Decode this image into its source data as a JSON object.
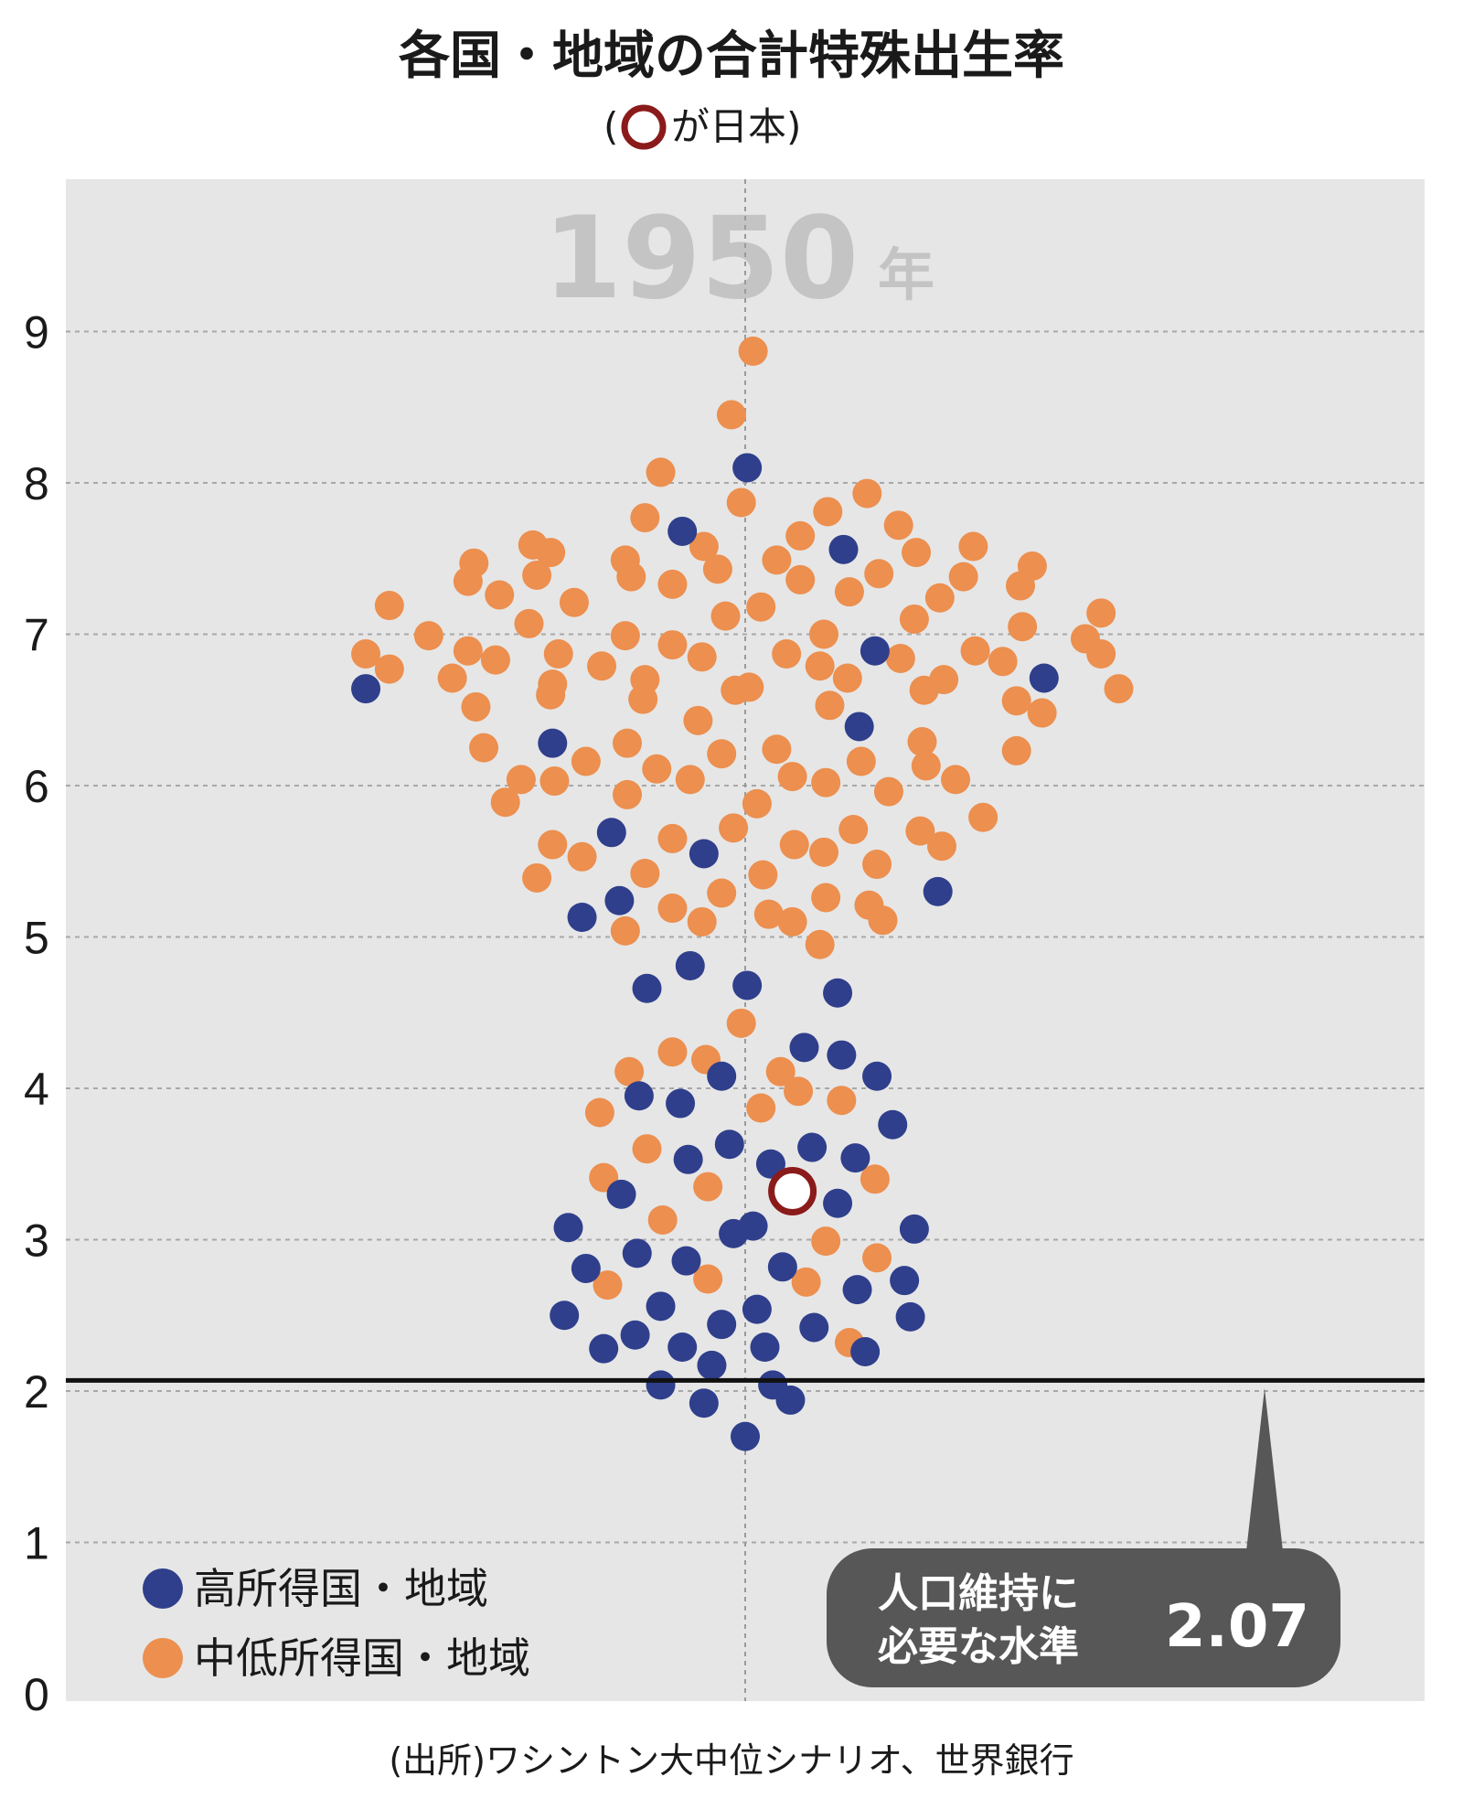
{
  "chart_data": {
    "type": "scatter",
    "title": "各国・地域の合計特殊出生率",
    "subtitle_open": "(",
    "subtitle_text": "が日本)",
    "year_label": "1950",
    "year_unit": "年",
    "ylim": [
      0,
      9.95
    ],
    "yticks": [
      "0",
      "1",
      "2",
      "3",
      "4",
      "5",
      "6",
      "7",
      "8",
      "9"
    ],
    "grid": true,
    "legend_placement": "bottom-left",
    "legend": [
      {
        "name": "高所得国・地域",
        "color": "#2f3f8c"
      },
      {
        "name": "中低所得国・地域",
        "color": "#ec8f4f"
      }
    ],
    "japan": {
      "x": 1.2,
      "y": 3.32,
      "color": "#8b1a1a"
    },
    "reference_line": {
      "y": 2.07,
      "label_line1": "人口維持に",
      "label_line2": "必要な水準",
      "value": "2.07"
    },
    "source": "(出所)ワシントン大中位シナリオ、世界銀行",
    "series": [
      {
        "name": "高所得国・地域",
        "color": "#2f3f8c",
        "points": [
          [
            -9.65,
            6.64
          ],
          [
            -4.9,
            6.28
          ],
          [
            -3.4,
            5.69
          ],
          [
            -4.15,
            5.13
          ],
          [
            -3.2,
            5.24
          ],
          [
            -1.05,
            5.55
          ],
          [
            -1.6,
            7.68
          ],
          [
            0.05,
            8.1
          ],
          [
            2.5,
            7.56
          ],
          [
            3.3,
            6.89
          ],
          [
            2.9,
            6.39
          ],
          [
            7.6,
            6.71
          ],
          [
            4.9,
            5.3
          ],
          [
            -2.5,
            4.66
          ],
          [
            -1.4,
            4.81
          ],
          [
            0.05,
            4.68
          ],
          [
            2.35,
            4.63
          ],
          [
            1.5,
            4.27
          ],
          [
            2.45,
            4.22
          ],
          [
            3.35,
            4.08
          ],
          [
            -0.6,
            4.08
          ],
          [
            -2.7,
            3.95
          ],
          [
            -1.65,
            3.9
          ],
          [
            -0.4,
            3.63
          ],
          [
            1.7,
            3.61
          ],
          [
            3.75,
            3.76
          ],
          [
            -1.45,
            3.53
          ],
          [
            0.65,
            3.5
          ],
          [
            2.8,
            3.54
          ],
          [
            -3.15,
            3.3
          ],
          [
            2.35,
            3.24
          ],
          [
            -4.5,
            3.08
          ],
          [
            0.2,
            3.09
          ],
          [
            -0.3,
            3.04
          ],
          [
            4.3,
            3.07
          ],
          [
            -2.75,
            2.91
          ],
          [
            -4.05,
            2.81
          ],
          [
            -1.5,
            2.86
          ],
          [
            0.95,
            2.82
          ],
          [
            4.05,
            2.73
          ],
          [
            2.85,
            2.67
          ],
          [
            -2.15,
            2.56
          ],
          [
            0.3,
            2.54
          ],
          [
            -4.6,
            2.5
          ],
          [
            4.2,
            2.49
          ],
          [
            -0.6,
            2.44
          ],
          [
            1.75,
            2.42
          ],
          [
            -2.8,
            2.37
          ],
          [
            -1.6,
            2.29
          ],
          [
            0.5,
            2.29
          ],
          [
            3.05,
            2.26
          ],
          [
            -3.6,
            2.28
          ],
          [
            -0.85,
            2.17
          ],
          [
            -2.15,
            2.04
          ],
          [
            0.7,
            2.04
          ],
          [
            -1.05,
            1.92
          ],
          [
            1.15,
            1.94
          ],
          [
            0.0,
            1.7
          ]
        ]
      },
      {
        "name": "中低所得国・地域",
        "color": "#ec8f4f",
        "points": [
          [
            0.2,
            8.87
          ],
          [
            -0.35,
            8.45
          ],
          [
            -2.15,
            8.07
          ],
          [
            -0.1,
            7.87
          ],
          [
            -2.55,
            7.77
          ],
          [
            3.1,
            7.93
          ],
          [
            2.1,
            7.81
          ],
          [
            1.4,
            7.65
          ],
          [
            3.9,
            7.72
          ],
          [
            -1.05,
            7.58
          ],
          [
            -5.4,
            7.59
          ],
          [
            -4.95,
            7.54
          ],
          [
            0.8,
            7.49
          ],
          [
            4.35,
            7.54
          ],
          [
            5.8,
            7.58
          ],
          [
            -6.9,
            7.47
          ],
          [
            -3.05,
            7.49
          ],
          [
            -0.7,
            7.43
          ],
          [
            3.4,
            7.4
          ],
          [
            7.3,
            7.45
          ],
          [
            -7.05,
            7.35
          ],
          [
            -5.3,
            7.39
          ],
          [
            -2.9,
            7.38
          ],
          [
            -1.85,
            7.33
          ],
          [
            1.4,
            7.36
          ],
          [
            5.55,
            7.38
          ],
          [
            7.0,
            7.32
          ],
          [
            -6.25,
            7.26
          ],
          [
            -4.35,
            7.21
          ],
          [
            2.65,
            7.28
          ],
          [
            4.95,
            7.24
          ],
          [
            -9.05,
            7.19
          ],
          [
            -0.5,
            7.12
          ],
          [
            0.4,
            7.18
          ],
          [
            4.3,
            7.1
          ],
          [
            9.05,
            7.14
          ],
          [
            -5.5,
            7.07
          ],
          [
            -3.05,
            6.99
          ],
          [
            -8.05,
            6.99
          ],
          [
            2.0,
            7.0
          ],
          [
            7.05,
            7.05
          ],
          [
            8.65,
            6.97
          ],
          [
            -1.85,
            6.93
          ],
          [
            -7.05,
            6.89
          ],
          [
            -4.75,
            6.87
          ],
          [
            1.05,
            6.87
          ],
          [
            5.85,
            6.89
          ],
          [
            -9.65,
            6.87
          ],
          [
            -6.35,
            6.83
          ],
          [
            -1.1,
            6.85
          ],
          [
            3.95,
            6.84
          ],
          [
            6.55,
            6.82
          ],
          [
            -9.05,
            6.77
          ],
          [
            -3.65,
            6.79
          ],
          [
            1.9,
            6.79
          ],
          [
            9.05,
            6.87
          ],
          [
            -7.45,
            6.71
          ],
          [
            -2.55,
            6.7
          ],
          [
            2.6,
            6.71
          ],
          [
            5.05,
            6.7
          ],
          [
            -4.9,
            6.67
          ],
          [
            -0.25,
            6.63
          ],
          [
            0.1,
            6.65
          ],
          [
            -4.95,
            6.6
          ],
          [
            -2.6,
            6.57
          ],
          [
            4.55,
            6.63
          ],
          [
            6.9,
            6.56
          ],
          [
            9.5,
            6.64
          ],
          [
            -6.85,
            6.52
          ],
          [
            2.15,
            6.53
          ],
          [
            7.55,
            6.48
          ],
          [
            -1.2,
            6.43
          ],
          [
            4.5,
            6.29
          ],
          [
            -6.65,
            6.25
          ],
          [
            -3.0,
            6.28
          ],
          [
            0.8,
            6.24
          ],
          [
            -0.6,
            6.21
          ],
          [
            6.9,
            6.23
          ],
          [
            -4.05,
            6.16
          ],
          [
            -2.25,
            6.11
          ],
          [
            2.95,
            6.16
          ],
          [
            4.6,
            6.13
          ],
          [
            -5.7,
            6.04
          ],
          [
            -4.85,
            6.03
          ],
          [
            -1.4,
            6.04
          ],
          [
            1.2,
            6.06
          ],
          [
            2.05,
            6.02
          ],
          [
            5.35,
            6.04
          ],
          [
            -3.0,
            5.94
          ],
          [
            3.65,
            5.96
          ],
          [
            -6.1,
            5.89
          ],
          [
            0.3,
            5.88
          ],
          [
            6.05,
            5.79
          ],
          [
            -0.3,
            5.72
          ],
          [
            2.75,
            5.71
          ],
          [
            4.45,
            5.7
          ],
          [
            -4.9,
            5.61
          ],
          [
            -1.85,
            5.65
          ],
          [
            1.25,
            5.61
          ],
          [
            2.0,
            5.56
          ],
          [
            5.0,
            5.6
          ],
          [
            -4.15,
            5.53
          ],
          [
            3.35,
            5.48
          ],
          [
            -2.55,
            5.42
          ],
          [
            0.45,
            5.41
          ],
          [
            -5.3,
            5.39
          ],
          [
            -0.6,
            5.29
          ],
          [
            2.05,
            5.26
          ],
          [
            -1.85,
            5.19
          ],
          [
            3.15,
            5.21
          ],
          [
            0.6,
            5.15
          ],
          [
            1.2,
            5.1
          ],
          [
            -1.1,
            5.1
          ],
          [
            3.5,
            5.11
          ],
          [
            -3.05,
            5.04
          ],
          [
            1.9,
            4.95
          ],
          [
            -0.1,
            4.43
          ],
          [
            -1.85,
            4.24
          ],
          [
            -1.0,
            4.19
          ],
          [
            0.9,
            4.11
          ],
          [
            -2.95,
            4.11
          ],
          [
            1.35,
            3.98
          ],
          [
            2.45,
            3.92
          ],
          [
            0.4,
            3.87
          ],
          [
            -3.7,
            3.84
          ],
          [
            -2.5,
            3.6
          ],
          [
            -3.6,
            3.41
          ],
          [
            -0.95,
            3.35
          ],
          [
            3.3,
            3.4
          ],
          [
            -2.1,
            3.13
          ],
          [
            2.05,
            2.99
          ],
          [
            -0.95,
            2.74
          ],
          [
            1.55,
            2.72
          ],
          [
            3.35,
            2.88
          ],
          [
            -3.5,
            2.7
          ],
          [
            2.65,
            2.32
          ]
        ]
      }
    ]
  }
}
